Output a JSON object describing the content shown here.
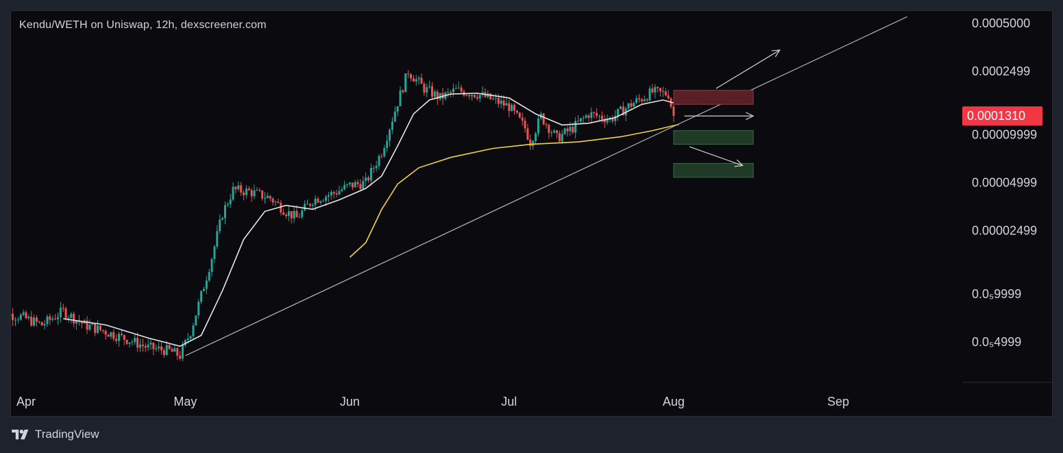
{
  "colors": {
    "background": "#0b0b0f",
    "frame": "#1e222d",
    "text": "#d1d4dc",
    "bull": "#26a69a",
    "bear": "#ef5350",
    "ma_short": "#e8e8e8",
    "ma_long": "#f5d53b",
    "trendline": "#b8b8b8",
    "current_price_bg": "#f23645",
    "resistance_zone": "#5a1f27",
    "support_zone": "#1f3a27"
  },
  "brand": {
    "name": "TradingView",
    "logo_icon": "tradingview-logo-icon"
  },
  "chart_data": {
    "type": "candlestick",
    "title": "Kendu/WETH on Uniswap, 12h, dexscreener.com",
    "scale": "log",
    "y_ticks": [
      "0.0005000",
      "0.0002499",
      "0.00009999",
      "0.00004999",
      "0.00002499",
      "0.0₅9999",
      "0.0₅4999"
    ],
    "y_tick_values": [
      0.0005,
      0.0002499,
      9.999e-05,
      4.999e-05,
      2.499e-05,
      9.999e-06,
      4.999e-06
    ],
    "x_ticks": [
      "Apr",
      "May",
      "Jun",
      "Jul",
      "Aug",
      "Sep"
    ],
    "current_price": "0.0001310",
    "current_price_value": 0.000131,
    "price_path": [
      [
        "2024-03-26",
        7.8e-06
      ],
      [
        "2024-03-31",
        7.2e-06
      ],
      [
        "2024-04-04",
        6.4e-06
      ],
      [
        "2024-04-08",
        7.8e-06
      ],
      [
        "2024-04-12",
        6.4e-06
      ],
      [
        "2024-04-16",
        5.8e-06
      ],
      [
        "2024-04-20",
        5.2e-06
      ],
      [
        "2024-04-24",
        4.6e-06
      ],
      [
        "2024-04-28",
        4.4e-06
      ],
      [
        "2024-04-30",
        4.1e-06
      ],
      [
        "2024-05-02",
        5.8e-06
      ],
      [
        "2024-05-04",
        9.8e-06
      ],
      [
        "2024-05-06",
        1.7e-05
      ],
      [
        "2024-05-08",
        3.2e-05
      ],
      [
        "2024-05-10",
        4.5e-05
      ],
      [
        "2024-05-13",
        4.4e-05
      ],
      [
        "2024-05-17",
        4e-05
      ],
      [
        "2024-05-20",
        3.3e-05
      ],
      [
        "2024-05-22",
        3e-05
      ],
      [
        "2024-05-25",
        3.9e-05
      ],
      [
        "2024-05-29",
        4.3e-05
      ],
      [
        "2024-06-01",
        4.8e-05
      ],
      [
        "2024-06-04",
        5e-05
      ],
      [
        "2024-06-07",
        7.8e-05
      ],
      [
        "2024-06-10",
        0.00016
      ],
      [
        "2024-06-12",
        0.00025
      ],
      [
        "2024-06-15",
        0.000195
      ],
      [
        "2024-06-18",
        0.00017
      ],
      [
        "2024-06-21",
        0.00019
      ],
      [
        "2024-06-25",
        0.00018
      ],
      [
        "2024-06-28",
        0.000165
      ],
      [
        "2024-07-01",
        0.00015
      ],
      [
        "2024-07-04",
        0.00011
      ],
      [
        "2024-07-05",
        9e-05
      ],
      [
        "2024-07-07",
        0.00013
      ],
      [
        "2024-07-10",
        9.5e-05
      ],
      [
        "2024-07-13",
        0.00011
      ],
      [
        "2024-07-16",
        0.000135
      ],
      [
        "2024-07-20",
        0.000125
      ],
      [
        "2024-07-24",
        0.000155
      ],
      [
        "2024-07-28",
        0.000185
      ],
      [
        "2024-07-31",
        0.00018
      ],
      [
        "2024-08-01",
        0.000131
      ]
    ],
    "series": [
      {
        "type": "line",
        "points": [
          [
            "2024-04-08",
            7e-06
          ],
          [
            "2024-04-16",
            6.4e-06
          ],
          [
            "2024-04-24",
            5.3e-06
          ],
          [
            "2024-04-30",
            4.7e-06
          ],
          [
            "2024-05-04",
            5.5e-06
          ],
          [
            "2024-05-08",
            1.05e-05
          ],
          [
            "2024-05-12",
            2.2e-05
          ],
          [
            "2024-05-16",
            3.3e-05
          ],
          [
            "2024-05-20",
            3.6e-05
          ],
          [
            "2024-05-25",
            3.4e-05
          ],
          [
            "2024-05-30",
            3.9e-05
          ],
          [
            "2024-06-04",
            4.6e-05
          ],
          [
            "2024-06-07",
            5.5e-05
          ],
          [
            "2024-06-10",
            8.5e-05
          ],
          [
            "2024-06-13",
            0.000135
          ],
          [
            "2024-06-16",
            0.000165
          ],
          [
            "2024-06-20",
            0.00018
          ],
          [
            "2024-06-25",
            0.000182
          ],
          [
            "2024-07-01",
            0.00017
          ],
          [
            "2024-07-06",
            0.000135
          ],
          [
            "2024-07-11",
            0.000115
          ],
          [
            "2024-07-16",
            0.000118
          ],
          [
            "2024-07-21",
            0.000128
          ],
          [
            "2024-07-26",
            0.000155
          ],
          [
            "2024-07-30",
            0.000165
          ],
          [
            "2024-08-02",
            0.000155
          ]
        ]
      },
      {
        "type": "line",
        "points": [
          [
            "2024-06-01",
            1.7e-05
          ],
          [
            "2024-06-04",
            2.1e-05
          ],
          [
            "2024-06-07",
            3.4e-05
          ],
          [
            "2024-06-10",
            4.9e-05
          ],
          [
            "2024-06-14",
            6.2e-05
          ],
          [
            "2024-06-20",
            7.2e-05
          ],
          [
            "2024-06-28",
            8.2e-05
          ],
          [
            "2024-07-05",
            8.7e-05
          ],
          [
            "2024-07-14",
            9e-05
          ],
          [
            "2024-07-22",
            9.7e-05
          ],
          [
            "2024-07-28",
            0.000106
          ],
          [
            "2024-08-02",
            0.000116
          ]
        ]
      }
    ],
    "annotations": {
      "trendline": [
        [
          "2024-05-01",
          4.1e-06
        ],
        [
          "2024-09-14",
          0.00055
        ]
      ],
      "resistance_zone": {
        "from": "2024-08-01",
        "to": "2024-08-16",
        "low": 0.000155,
        "high": 0.00019
      },
      "support_zones": [
        {
          "from": "2024-08-01",
          "to": "2024-08-16",
          "low": 8.7e-05,
          "high": 0.000106
        },
        {
          "from": "2024-08-01",
          "to": "2024-08-16",
          "low": 5.4e-05,
          "high": 6.6e-05
        }
      ],
      "arrows": [
        {
          "from": [
            "2024-08-09",
            0.000195
          ],
          "to": [
            "2024-08-21",
            0.00034
          ]
        },
        {
          "from": [
            "2024-08-03",
            0.000131
          ],
          "to": [
            "2024-08-16",
            0.000131
          ]
        },
        {
          "from": [
            "2024-08-04",
            8.4e-05
          ],
          "to": [
            "2024-08-14",
            6.4e-05
          ]
        }
      ]
    }
  }
}
